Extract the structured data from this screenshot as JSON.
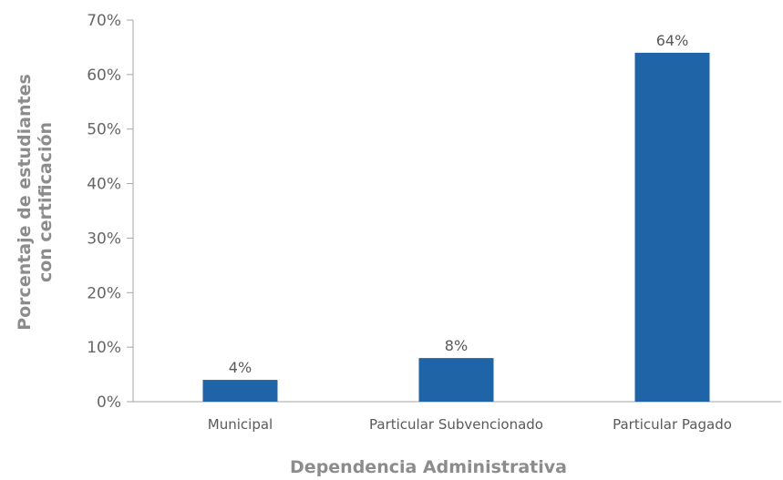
{
  "chart_data": {
    "type": "bar",
    "title": "",
    "xlabel": "Dependencia Administrativa",
    "ylabel_lines": [
      "Porcentaje de estudiantes",
      "con certificación"
    ],
    "categories": [
      "Municipal",
      "Particular Subvencionado",
      "Particular Pagado"
    ],
    "values": [
      4,
      8,
      64
    ],
    "data_labels": [
      "4%",
      "8%",
      "64%"
    ],
    "ylim": [
      0,
      70
    ],
    "yticks": [
      0,
      10,
      20,
      30,
      40,
      50,
      60,
      70
    ],
    "ytick_labels": [
      "0%",
      "10%",
      "20%",
      "30%",
      "40%",
      "50%",
      "60%",
      "70%"
    ],
    "grid": false,
    "legend": "none",
    "bar_color": "#1f64a6",
    "axis_color": "#a6a6a6"
  }
}
